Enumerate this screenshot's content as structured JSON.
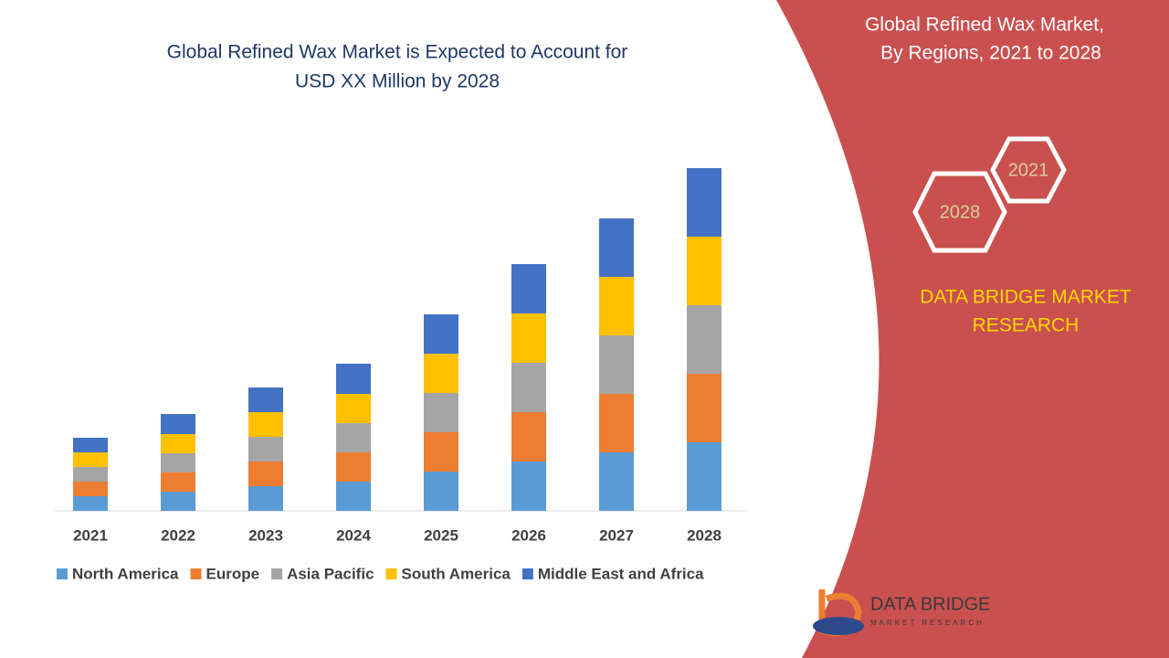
{
  "chart_data": {
    "type": "bar",
    "stacked": true,
    "title": [
      "Global Refined Wax Market is Expected to Account for",
      "USD XX Million by 2028"
    ],
    "categories": [
      "2021",
      "2022",
      "2023",
      "2024",
      "2025",
      "2026",
      "2027",
      "2028"
    ],
    "series": [
      {
        "name": "North America",
        "color": "#5b9bd5",
        "values": [
          16,
          21,
          27,
          32,
          43,
          54,
          64,
          75
        ]
      },
      {
        "name": "Europe",
        "color": "#ed7d31",
        "values": [
          16,
          21,
          27,
          32,
          43,
          54,
          64,
          75
        ]
      },
      {
        "name": "Asia Pacific",
        "color": "#a5a5a5",
        "values": [
          16,
          21,
          27,
          32,
          43,
          54,
          64,
          75
        ]
      },
      {
        "name": "South America",
        "color": "#ffc000",
        "values": [
          16,
          21,
          27,
          32,
          43,
          54,
          64,
          75
        ]
      },
      {
        "name": "Middle East and Africa",
        "color": "#4472c4",
        "values": [
          16,
          22,
          27,
          33,
          43,
          54,
          64,
          75
        ]
      }
    ],
    "legend": "bottom"
  },
  "panel": {
    "title": [
      "Global Refined Wax Market,",
      "By Regions, 2021 to 2028"
    ],
    "badges": [
      "2021",
      "2028"
    ],
    "brand": [
      "DATA BRIDGE MARKET",
      "RESEARCH"
    ]
  },
  "logo": {
    "name": "DATA BRIDGE",
    "tagline": "MARKET RESEARCH"
  }
}
